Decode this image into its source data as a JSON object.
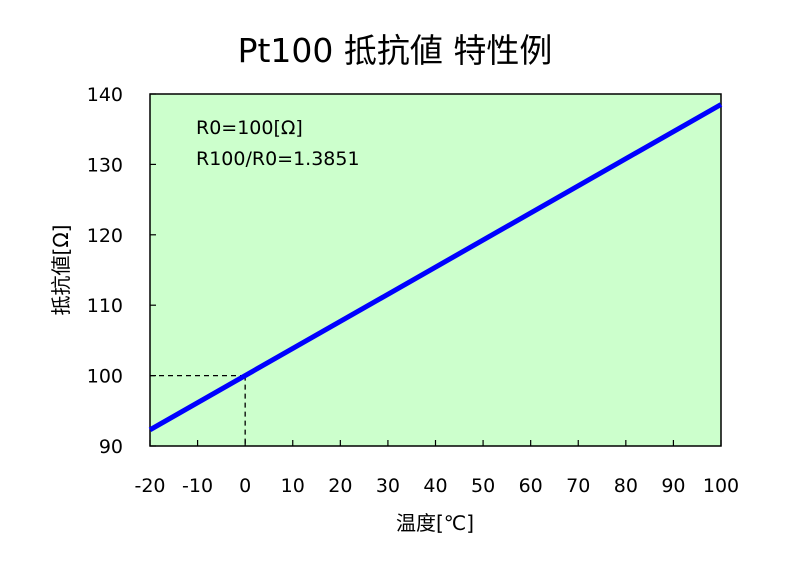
{
  "chart_data": {
    "type": "line",
    "title": "Pt100 抵抗値 特性例",
    "xlabel": "温度[℃]",
    "ylabel": "抵抗値[Ω]",
    "xlim": [
      -20,
      100
    ],
    "ylim": [
      90,
      140
    ],
    "xticks": [
      -20,
      -10,
      0,
      10,
      20,
      30,
      40,
      50,
      60,
      70,
      80,
      90,
      100
    ],
    "yticks": [
      90,
      100,
      110,
      120,
      130,
      140
    ],
    "grid": false,
    "series": [
      {
        "x": [
          -20,
          100
        ],
        "y": [
          92.3,
          138.51
        ]
      }
    ],
    "reference": {
      "x": 0,
      "y": 100
    },
    "annotations": [
      "R0=100[Ω]",
      "R100/R0=1.3851"
    ],
    "colors": {
      "plot_bg": "#ccffcc",
      "line": "#0000ff",
      "axis": "#000000"
    }
  }
}
